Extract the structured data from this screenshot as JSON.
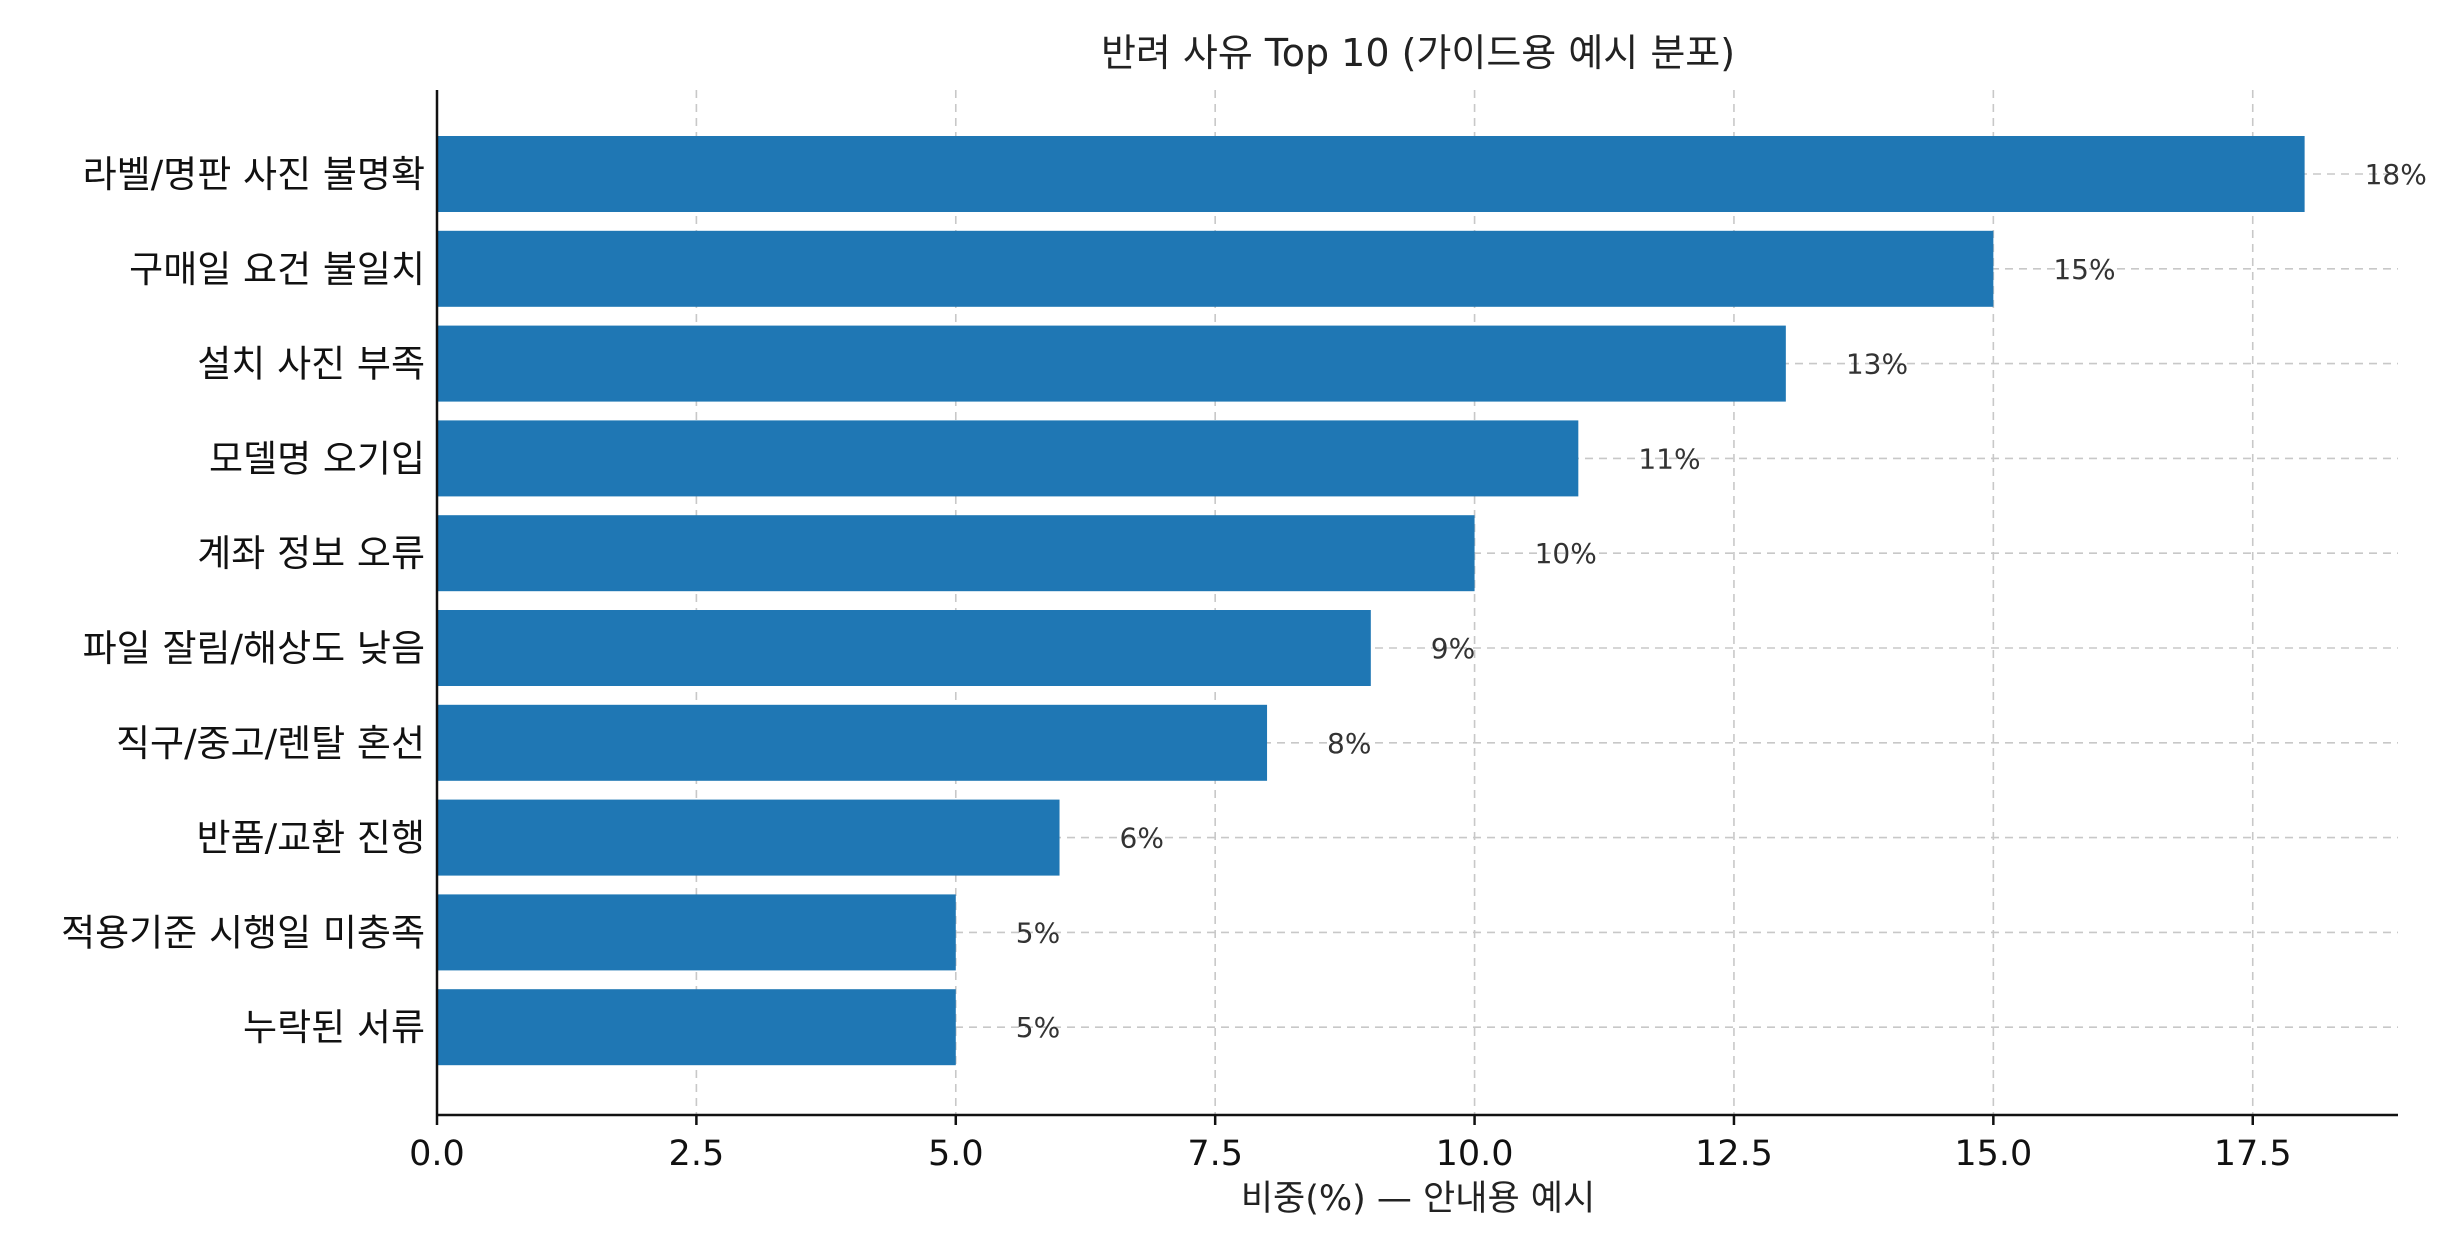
{
  "chart_data": {
    "type": "bar",
    "orientation": "horizontal",
    "title": "반려 사유 Top 10 (가이드용 예시 분포)",
    "xlabel": "비중(%) — 안내용 예시",
    "ylabel": "",
    "categories": [
      "라벨/명판 사진 불명확",
      "구매일 요건 불일치",
      "설치 사진 부족",
      "모델명 오기입",
      "계좌 정보 오류",
      "파일 잘림/해상도 낮음",
      "직구/중고/렌탈 혼선",
      "반품/교환 진행",
      "적용기준 시행일 미충족",
      "누락된 서류"
    ],
    "values": [
      18,
      15,
      13,
      11,
      10,
      9,
      8,
      6,
      5,
      5
    ],
    "data_labels": [
      "18%",
      "15%",
      "13%",
      "11%",
      "10%",
      "9%",
      "8%",
      "6%",
      "5%",
      "5%"
    ],
    "xlim": [
      0,
      18.9
    ],
    "xticks": [
      0,
      2.5,
      5,
      7.5,
      10,
      12.5,
      15,
      17.5
    ],
    "xtick_labels": [
      "0.0",
      "2.5",
      "5.0",
      "7.5",
      "10.0",
      "12.5",
      "15.0",
      "17.5"
    ],
    "grid": true,
    "bar_color": "#1f77b4"
  }
}
